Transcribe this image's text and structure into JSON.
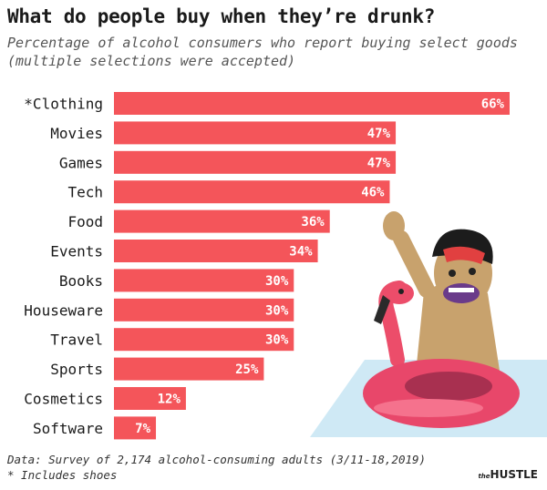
{
  "title": "What do people buy when they’re drunk?",
  "subtitle": "Percentage of alcohol consumers who report buying select goods (multiple selections were accepted)",
  "footer": {
    "source": "Data: Survey of 2,174 alcohol-consuming adults (3/11-18,2019)",
    "note": "* Includes shoes"
  },
  "logo": {
    "prefix": "the",
    "name": "HUSTLE"
  },
  "colors": {
    "bar": "#f4555a",
    "label_on_bar": "#ffffff",
    "category_text": "#1a1a1a"
  },
  "illustration": {
    "description_icon": "man-in-flamingo-float-icon"
  },
  "chart_data": {
    "type": "bar",
    "orientation": "horizontal",
    "categories": [
      "*Clothing",
      "Movies",
      "Games",
      "Tech",
      "Food",
      "Events",
      "Books",
      "Houseware",
      "Travel",
      "Sports",
      "Cosmetics",
      "Software"
    ],
    "values": [
      66,
      47,
      47,
      46,
      36,
      34,
      30,
      30,
      30,
      25,
      12,
      7
    ],
    "value_labels": [
      "66%",
      "47%",
      "47%",
      "46%",
      "36%",
      "34%",
      "30%",
      "30%",
      "30%",
      "25%",
      "12%",
      "7%"
    ],
    "unit": "%",
    "xlim": [
      0,
      66
    ],
    "grid": false,
    "legend": "none"
  }
}
